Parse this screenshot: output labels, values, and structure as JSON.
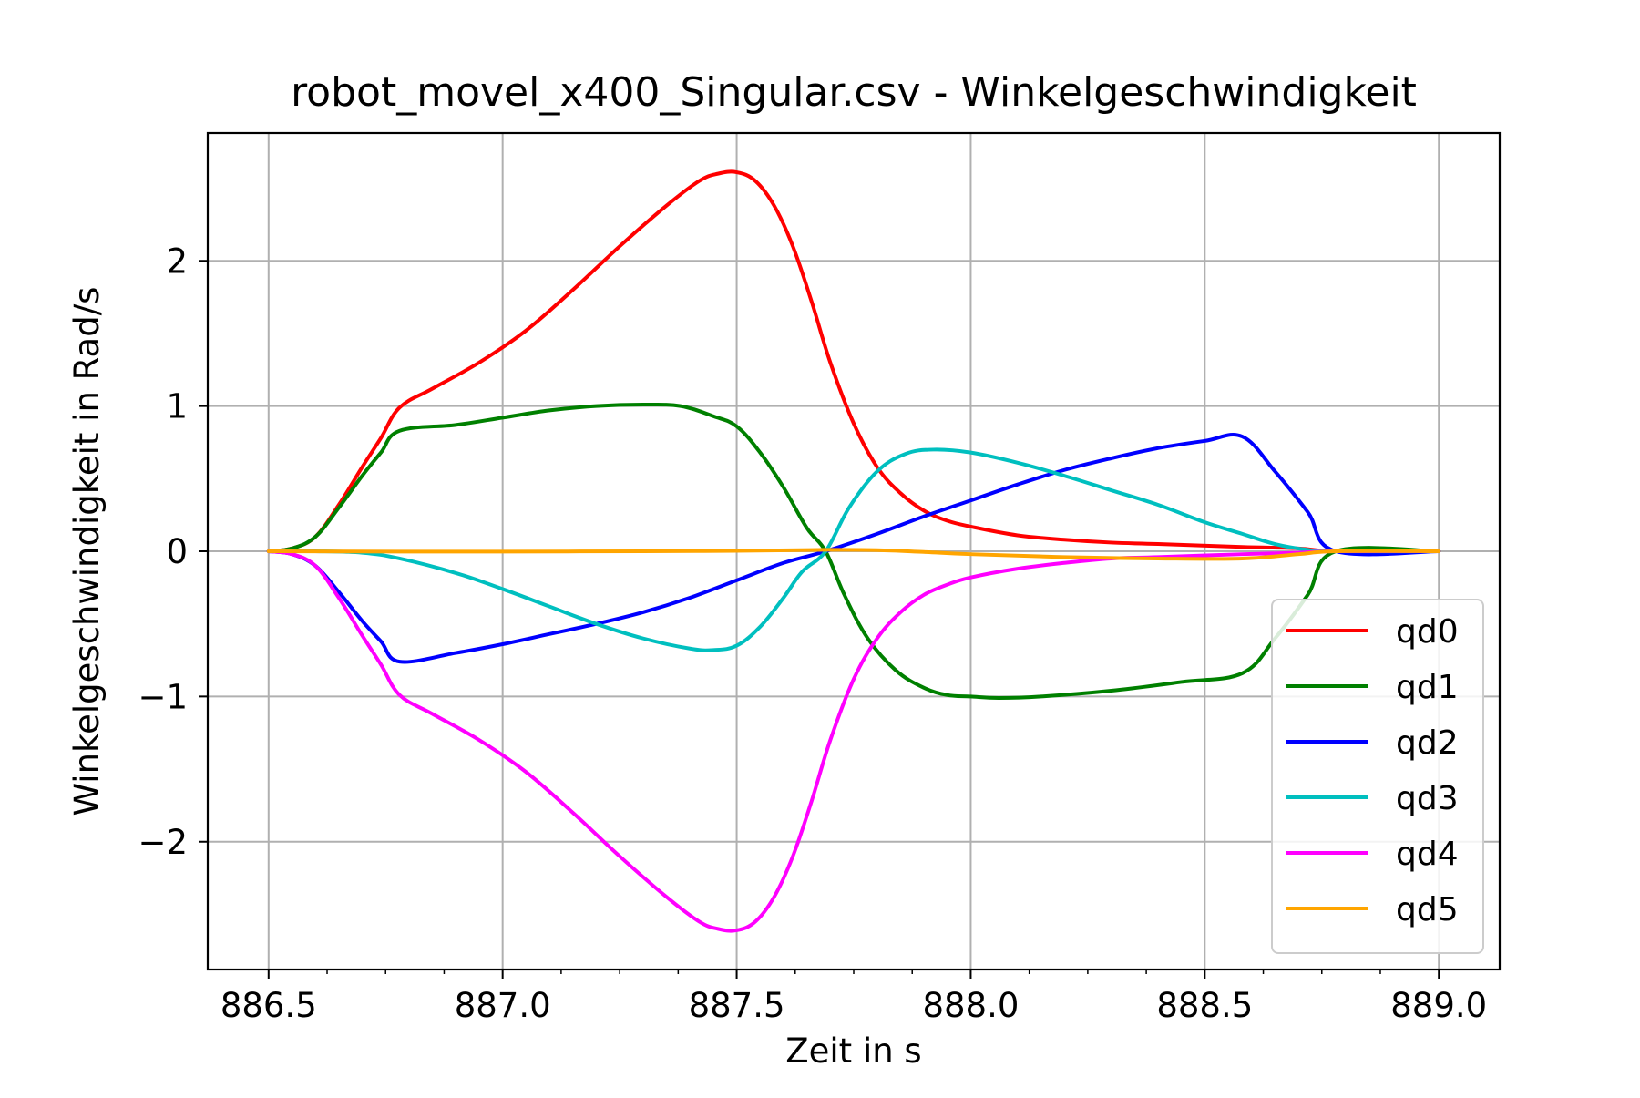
{
  "chart_data": {
    "type": "line",
    "title": "robot_movel_x400_Singular.csv - Winkelgeschwindigkeit",
    "xlabel": "Zeit in s",
    "ylabel": "Winkelgeschwindigkeit in Rad/s",
    "xlim": [
      886.37,
      889.13
    ],
    "ylim": [
      -2.88,
      2.88
    ],
    "grid": true,
    "legend_position": "lower right",
    "xticks": [
      886.5,
      887.0,
      887.5,
      888.0,
      888.5,
      889.0
    ],
    "xtick_labels": [
      "886.5",
      "887.0",
      "887.5",
      "888.0",
      "888.5",
      "889.0"
    ],
    "yticks": [
      2,
      1,
      0,
      -1,
      -2
    ],
    "ytick_labels": [
      "2",
      "1",
      "0",
      "−1",
      "−2"
    ],
    "series": [
      {
        "name": "qd0",
        "color": "#ff0000",
        "x": [
          886.5,
          886.55,
          886.6,
          886.65,
          886.7,
          886.74,
          886.78,
          886.85,
          886.95,
          887.05,
          887.15,
          887.25,
          887.35,
          887.42,
          887.46,
          887.5,
          887.54,
          887.58,
          887.62,
          887.66,
          887.7,
          887.75,
          887.8,
          887.85,
          887.9,
          887.95,
          888.0,
          888.1,
          888.2,
          888.3,
          888.4,
          888.58,
          888.7,
          888.78,
          889.0
        ],
        "y": [
          0,
          0.02,
          0.1,
          0.32,
          0.58,
          0.78,
          0.99,
          1.12,
          1.3,
          1.52,
          1.8,
          2.1,
          2.38,
          2.55,
          2.6,
          2.61,
          2.55,
          2.38,
          2.1,
          1.72,
          1.3,
          0.88,
          0.58,
          0.4,
          0.28,
          0.21,
          0.17,
          0.11,
          0.08,
          0.06,
          0.05,
          0.03,
          0.02,
          0,
          0
        ]
      },
      {
        "name": "qd1",
        "color": "#008000",
        "x": [
          886.5,
          886.55,
          886.6,
          886.65,
          886.7,
          886.74,
          886.78,
          886.9,
          887.0,
          887.1,
          887.2,
          887.3,
          887.38,
          887.45,
          887.5,
          887.55,
          887.6,
          887.65,
          887.69,
          887.73,
          887.78,
          887.84,
          887.9,
          887.95,
          888.0,
          888.06,
          888.15,
          888.3,
          888.45,
          888.58,
          888.65,
          888.72,
          888.78,
          889.0
        ],
        "y": [
          0,
          0.02,
          0.1,
          0.3,
          0.52,
          0.68,
          0.83,
          0.87,
          0.92,
          0.97,
          1.0,
          1.01,
          1.0,
          0.93,
          0.86,
          0.68,
          0.44,
          0.16,
          0,
          -0.3,
          -0.6,
          -0.82,
          -0.94,
          -0.99,
          -1.0,
          -1.01,
          -1.0,
          -0.96,
          -0.9,
          -0.84,
          -0.6,
          -0.3,
          0,
          0
        ]
      },
      {
        "name": "qd2",
        "color": "#0000ff",
        "x": [
          886.5,
          886.55,
          886.6,
          886.65,
          886.7,
          886.74,
          886.78,
          886.9,
          887.0,
          887.1,
          887.2,
          887.3,
          887.4,
          887.5,
          887.6,
          887.69,
          887.8,
          887.9,
          888.0,
          888.1,
          888.2,
          888.3,
          888.4,
          888.5,
          888.58,
          888.65,
          888.72,
          888.78,
          889.0
        ],
        "y": [
          0,
          -0.02,
          -0.1,
          -0.28,
          -0.48,
          -0.62,
          -0.76,
          -0.7,
          -0.64,
          -0.57,
          -0.5,
          -0.42,
          -0.32,
          -0.2,
          -0.08,
          0,
          0.12,
          0.24,
          0.35,
          0.46,
          0.56,
          0.64,
          0.71,
          0.76,
          0.79,
          0.55,
          0.27,
          0,
          0
        ]
      },
      {
        "name": "qd3",
        "color": "#00bfbf",
        "x": [
          886.5,
          886.6,
          886.7,
          886.78,
          886.9,
          887.0,
          887.1,
          887.2,
          887.3,
          887.4,
          887.45,
          887.5,
          887.55,
          887.6,
          887.64,
          887.69,
          887.74,
          887.8,
          887.86,
          887.92,
          888.0,
          888.1,
          888.2,
          888.3,
          888.4,
          888.5,
          888.58,
          888.65,
          888.72,
          888.78,
          889.0
        ],
        "y": [
          0,
          0,
          -0.01,
          -0.05,
          -0.15,
          -0.26,
          -0.38,
          -0.5,
          -0.6,
          -0.67,
          -0.68,
          -0.65,
          -0.52,
          -0.32,
          -0.14,
          0,
          0.3,
          0.55,
          0.67,
          0.7,
          0.68,
          0.61,
          0.52,
          0.42,
          0.32,
          0.2,
          0.12,
          0.05,
          0.01,
          0,
          0
        ]
      },
      {
        "name": "qd4",
        "color": "#ff00ff",
        "x": [
          886.5,
          886.55,
          886.6,
          886.65,
          886.7,
          886.74,
          886.78,
          886.85,
          886.95,
          887.05,
          887.15,
          887.25,
          887.35,
          887.42,
          887.46,
          887.5,
          887.54,
          887.58,
          887.62,
          887.66,
          887.7,
          887.75,
          887.8,
          887.85,
          887.9,
          887.95,
          888.0,
          888.1,
          888.2,
          888.3,
          888.4,
          888.58,
          888.7,
          888.78,
          889.0
        ],
        "y": [
          0,
          -0.02,
          -0.1,
          -0.32,
          -0.58,
          -0.78,
          -0.99,
          -1.12,
          -1.3,
          -1.52,
          -1.8,
          -2.1,
          -2.38,
          -2.55,
          -2.6,
          -2.61,
          -2.55,
          -2.38,
          -2.1,
          -1.72,
          -1.3,
          -0.88,
          -0.6,
          -0.42,
          -0.3,
          -0.23,
          -0.18,
          -0.12,
          -0.08,
          -0.05,
          -0.04,
          -0.02,
          -0.01,
          0,
          0
        ]
      },
      {
        "name": "qd5",
        "color": "#ffa500",
        "x": [
          886.5,
          886.78,
          887.0,
          887.3,
          887.5,
          887.69,
          887.8,
          887.9,
          888.0,
          888.2,
          888.4,
          888.58,
          888.7,
          888.78,
          889.0
        ],
        "y": [
          0,
          -0.002,
          -0.002,
          0,
          0.003,
          0.01,
          0.008,
          -0.005,
          -0.02,
          -0.04,
          -0.05,
          -0.05,
          -0.02,
          0,
          0
        ]
      }
    ]
  }
}
